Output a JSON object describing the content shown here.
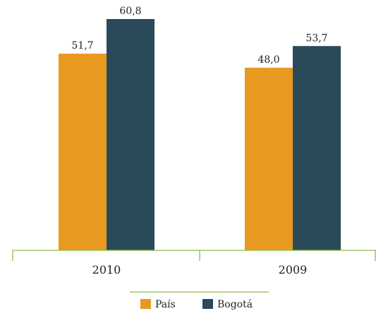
{
  "chart_data": {
    "type": "bar",
    "categories": [
      "2010",
      "2009"
    ],
    "series": [
      {
        "name": "País",
        "color": "#e8991f",
        "values": [
          51.7,
          48.0
        ],
        "labels": [
          "51,7",
          "48,0"
        ]
      },
      {
        "name": "Bogotá",
        "color": "#2a4a59",
        "values": [
          60.8,
          53.7
        ],
        "labels": [
          "60,8",
          "53,7"
        ]
      }
    ],
    "title": "",
    "xlabel": "",
    "ylabel": "",
    "ylim": [
      0,
      60.8
    ],
    "grid": false,
    "legend_position": "bottom-center",
    "axis_color": "#8bbf4a"
  }
}
